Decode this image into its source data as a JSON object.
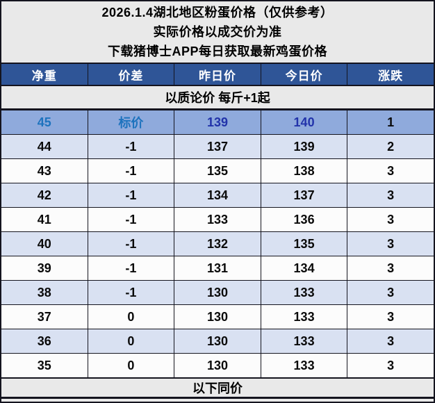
{
  "header": {
    "line1": "2026.1.4湖北地区粉蛋价格（仅供参考）",
    "line2": "实际价格以成交价为准",
    "line3": "下载猪博士APP每日获取最新鸡蛋价格"
  },
  "table": {
    "columns": [
      "净重",
      "价差",
      "昨日价",
      "今日价",
      "涨跌"
    ],
    "note": "以质论价 每斤+1起",
    "rows": [
      {
        "net_weight": "45",
        "diff": "标价",
        "yesterday": "139",
        "today": "140",
        "change": "1",
        "highlight": true
      },
      {
        "net_weight": "44",
        "diff": "-1",
        "yesterday": "137",
        "today": "139",
        "change": "2",
        "highlight": false
      },
      {
        "net_weight": "43",
        "diff": "-1",
        "yesterday": "135",
        "today": "138",
        "change": "3",
        "highlight": false
      },
      {
        "net_weight": "42",
        "diff": "-1",
        "yesterday": "134",
        "today": "137",
        "change": "3",
        "highlight": false
      },
      {
        "net_weight": "41",
        "diff": "-1",
        "yesterday": "133",
        "today": "136",
        "change": "3",
        "highlight": false
      },
      {
        "net_weight": "40",
        "diff": "-1",
        "yesterday": "132",
        "today": "135",
        "change": "3",
        "highlight": false
      },
      {
        "net_weight": "39",
        "diff": "-1",
        "yesterday": "131",
        "today": "134",
        "change": "3",
        "highlight": false
      },
      {
        "net_weight": "38",
        "diff": "-1",
        "yesterday": "130",
        "today": "133",
        "change": "3",
        "highlight": false
      },
      {
        "net_weight": "37",
        "diff": "0",
        "yesterday": "130",
        "today": "133",
        "change": "3",
        "highlight": false
      },
      {
        "net_weight": "36",
        "diff": "0",
        "yesterday": "130",
        "today": "133",
        "change": "3",
        "highlight": false
      },
      {
        "net_weight": "35",
        "diff": "0",
        "yesterday": "130",
        "today": "133",
        "change": "3",
        "highlight": false
      }
    ],
    "footer": "以下同价"
  },
  "colors": {
    "header_blue": "#2F5597",
    "highlight_row_bg": "#8FAADC",
    "alt_row_bg": "#D9E1F2",
    "gray_band_bg": "#E9E9E9",
    "highlight_accent_text": "#1E73BE",
    "highlight_navy_text": "#2233AA",
    "grid_border": "#14141E"
  }
}
